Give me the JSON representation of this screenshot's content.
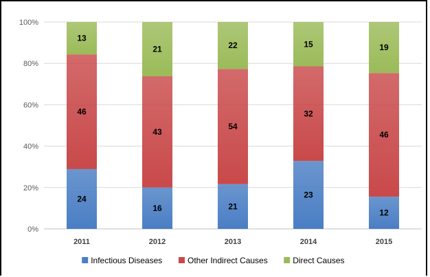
{
  "chart_data": {
    "type": "bar",
    "stacked": true,
    "percent_stacked": true,
    "categories": [
      "2011",
      "2012",
      "2013",
      "2014",
      "2015"
    ],
    "series": [
      {
        "name": "Infectious Diseases",
        "values": [
          24,
          16,
          21,
          23,
          12
        ],
        "color": "#4a7ec4"
      },
      {
        "name": "Other Indirect Causes",
        "values": [
          46,
          43,
          54,
          32,
          46
        ],
        "color": "#c9494a"
      },
      {
        "name": "Direct Causes",
        "values": [
          13,
          21,
          22,
          15,
          19
        ],
        "color": "#9bbb59"
      }
    ],
    "yticks": [
      "0%",
      "20%",
      "40%",
      "60%",
      "80%",
      "100%"
    ],
    "ylim": [
      0,
      100
    ],
    "grid": true,
    "legend": "bottom",
    "title": "",
    "xlabel": "",
    "ylabel": ""
  }
}
